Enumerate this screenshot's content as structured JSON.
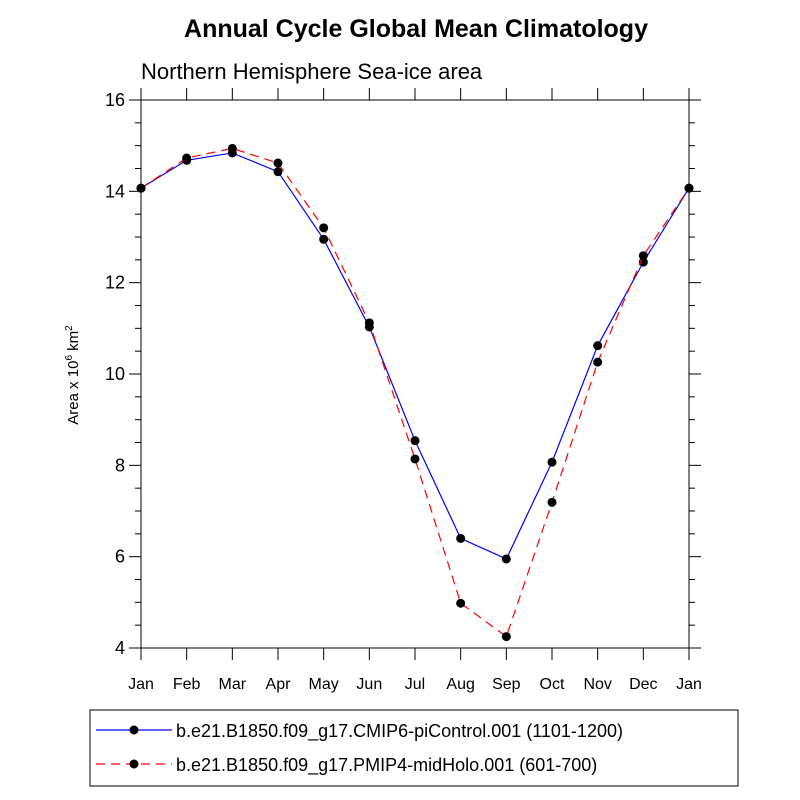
{
  "chart_data": {
    "type": "line",
    "title": "Annual Cycle Global Mean Climatology",
    "subtitle": "Northern Hemisphere Sea-ice area",
    "ylabel_prefix": "Area x 10",
    "ylabel_exp": "6",
    "ylabel_unit": "km",
    "ylabel_unit_exp": "2",
    "xlabel": "",
    "categories": [
      "Jan",
      "Feb",
      "Mar",
      "Apr",
      "May",
      "Jun",
      "Jul",
      "Aug",
      "Sep",
      "Oct",
      "Nov",
      "Dec",
      "Jan"
    ],
    "ylim": [
      4,
      16
    ],
    "yticks": [
      4,
      6,
      8,
      10,
      12,
      14,
      16
    ],
    "yticks_labels": [
      "4",
      "6",
      "8",
      "10",
      "12",
      "14",
      "16"
    ],
    "series": [
      {
        "name": "b.e21.B1850.f09_g17.CMIP6-piControl.001 (1101-1200)",
        "color": "#0000ff",
        "line_style": "solid",
        "marker": "filled-circle",
        "values": [
          14.07,
          14.68,
          14.84,
          14.43,
          12.95,
          11.03,
          8.54,
          6.4,
          5.95,
          8.07,
          10.62,
          12.45,
          14.07
        ]
      },
      {
        "name": "b.e21.B1850.f09_g17.PMIP4-midHolo.001 (601-700)",
        "color": "#ff0000",
        "line_style": "dashed",
        "marker": "filled-circle",
        "values": [
          14.07,
          14.73,
          14.94,
          14.62,
          13.2,
          11.12,
          8.14,
          4.98,
          4.25,
          7.19,
          10.26,
          12.59,
          14.07
        ]
      }
    ],
    "grid": false,
    "legend_position": "bottom"
  }
}
